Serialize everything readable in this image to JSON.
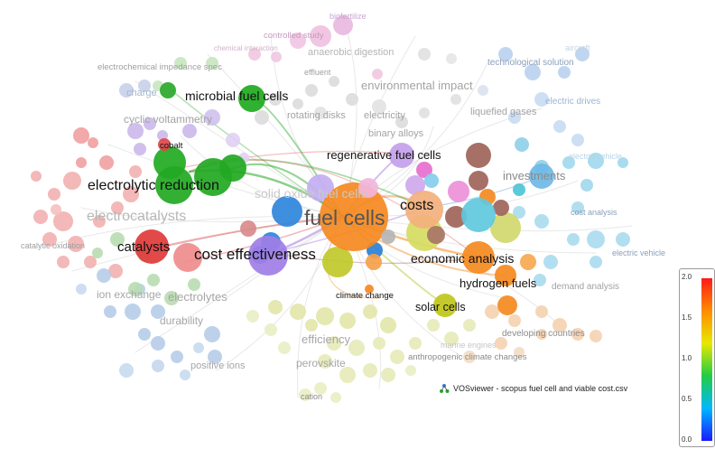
{
  "credit": {
    "text": "VOSviewer - scopus fuel cell and viable cost.csv"
  },
  "colorbar": {
    "ticks": [
      "2.0",
      "1.5",
      "1.0",
      "0.5",
      "0.0"
    ]
  },
  "labels": {
    "biofertilizer": "biofertilize",
    "controlled_study": "controlled study",
    "chemical_interaction": "chemical interaction",
    "anaerobic_digestion": "anaerobic digestion",
    "effluent": "effluent",
    "aircraft": "aircraft",
    "technological_solution": "technological solution",
    "electrochemical_impedance": "electrochemical impedance spec",
    "environmental_impact": "environmental impact",
    "charge": "charge",
    "microbial_fuel_cells": "microbial fuel cells",
    "electric_drives": "electric drives",
    "liquefied_gases": "liquefied gases",
    "rotating_disks": "rotating disks",
    "electricity": "electricity",
    "cyclic_voltammetry": "cyclic voltammetry",
    "binary_alloys": "binary alloys",
    "cobalt": "cobalt",
    "regenerative_fuel_cells": "regenerative fuel cells",
    "electric_vehicle_upper": "electric vehicle",
    "investments": "investments",
    "electrolytic_reduction": "electrolytic reduction",
    "solid_oxide_fuel_cells": "solid oxide fuel cells",
    "electrocatalysts": "electrocatalysts",
    "fuel_cells": "fuel cells",
    "costs": "costs",
    "cost_analysis": "cost analysis",
    "catalysts": "catalysts",
    "catalytic_oxidation": "catalytic oxidation",
    "cost_effectiveness": "cost effectiveness",
    "electric_vehicle": "electric vehicle",
    "economic_analysis": "economic analysis",
    "hydrogen_fuels": "hydrogen fuels",
    "demand_analysis": "demand analysis",
    "ion_exchange": "ion exchange",
    "electrolytes": "electrolytes",
    "climate_change": "climate change",
    "solar_cells": "solar cells",
    "durability": "durability",
    "developing_countries": "developing countries",
    "efficiency": "efficiency",
    "marine_engines": "marine engines",
    "anthropogenic": "anthropogenic climate changes",
    "positive_ions": "positive ions",
    "perovskite": "perovskite",
    "cation": "cation"
  },
  "colors": {
    "red": "#e04848",
    "green": "#2aa82a",
    "blue": "#2b7fd6",
    "yellow": "#b7c22a",
    "purple": "#9b6fd6",
    "cyan": "#4cc6d8",
    "orange": "#f58a1f",
    "brown": "#a0645a",
    "pink": "#e67ad0",
    "peach": "#e9a77a"
  }
}
